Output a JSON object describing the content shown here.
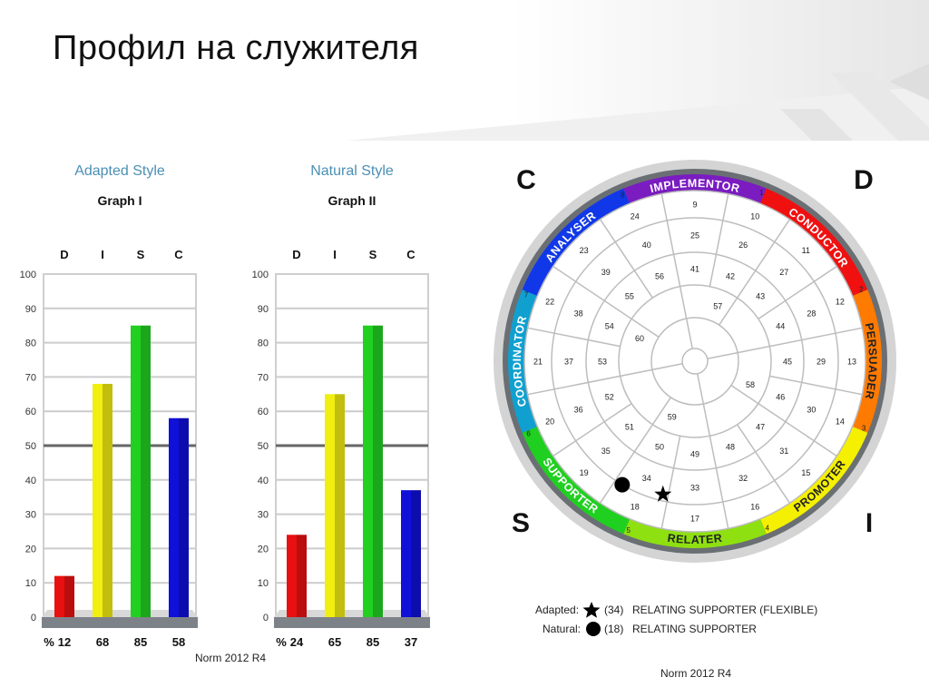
{
  "page": {
    "title": "Профил на служителя"
  },
  "chart_data": [
    {
      "type": "bar",
      "title": "Adapted Style",
      "subtitle": "Graph I",
      "categories": [
        "D",
        "I",
        "S",
        "C"
      ],
      "values": [
        12,
        68,
        85,
        58
      ],
      "colors": [
        "#e81010",
        "#f2ee10",
        "#22d022",
        "#1010d8"
      ],
      "ylim": [
        0,
        100
      ],
      "yticks": [
        0,
        10,
        20,
        30,
        40,
        50,
        60,
        70,
        80,
        90,
        100
      ],
      "midline": 50,
      "percent_label": "%",
      "grid": true
    },
    {
      "type": "bar",
      "title": "Natural Style",
      "subtitle": "Graph II",
      "categories": [
        "D",
        "I",
        "S",
        "C"
      ],
      "values": [
        24,
        65,
        85,
        37
      ],
      "colors": [
        "#e81010",
        "#f2ee10",
        "#22d022",
        "#1010d8"
      ],
      "ylim": [
        0,
        100
      ],
      "yticks": [
        0,
        10,
        20,
        30,
        40,
        50,
        60,
        70,
        80,
        90,
        100
      ],
      "midline": 50,
      "percent_label": "%",
      "grid": true
    }
  ],
  "graph_norm": "Norm 2012 R4",
  "wheel": {
    "corner_labels": [
      "C",
      "D",
      "S",
      "I"
    ],
    "segments": [
      "IMPLEMENTOR",
      "CONDUCTOR",
      "PERSUADER",
      "PROMOTER",
      "RELATER",
      "SUPPORTER",
      "COORDINATOR",
      "ANALYSER"
    ],
    "segment_colors": [
      "#7a1cc0",
      "#f01010",
      "#ff7a00",
      "#f4f000",
      "#8ee010",
      "#20d020",
      "#10a0d0",
      "#1038e8"
    ],
    "segment_numbers": [
      "1",
      "2",
      "3",
      "4",
      "5",
      "6",
      "7",
      "8"
    ],
    "rings": [
      [
        "9",
        "10",
        "11",
        "12",
        "13",
        "14",
        "15",
        "16",
        "17",
        "18",
        "19",
        "20",
        "21",
        "22",
        "23",
        "24"
      ],
      [
        "25",
        "26",
        "27",
        "28",
        "29",
        "30",
        "31",
        "32",
        "33",
        "34",
        "35",
        "36",
        "37",
        "38",
        "39",
        "40"
      ],
      [
        "41",
        "42",
        "43",
        "44",
        "45",
        "46",
        "47",
        "48",
        "49",
        "50",
        "51",
        "52",
        "53",
        "54",
        "55",
        "56"
      ],
      [
        "57",
        "58",
        "59",
        "60"
      ]
    ],
    "adapted_position": 34,
    "natural_position": 18,
    "norm": "Norm 2012 R4"
  },
  "legend": [
    {
      "label": "Adapted:",
      "marker": "star",
      "number": "(34)",
      "text": "RELATING SUPPORTER (FLEXIBLE)"
    },
    {
      "label": "Natural:",
      "marker": "dot",
      "number": "(18)",
      "text": "RELATING SUPPORTER"
    }
  ]
}
